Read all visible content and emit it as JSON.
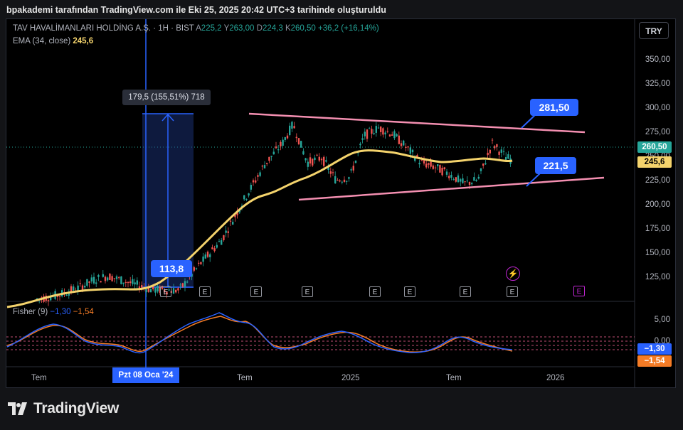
{
  "header": {
    "title": "bpakademi tarafından TradingView.com ile Eki 25, 2025 20:42 UTC+3 tarihinde oluşturuldu"
  },
  "legend": {
    "symbol": "TAV HAVALİMANLARI HOLDİNG A.Ş. · 1H · BIST",
    "a_key": "A",
    "a_val": "225,2",
    "y_key": "Y",
    "y_val": "263,00",
    "d_key": "D",
    "d_val": "224,3",
    "k_key": "K",
    "k_val": "260,50",
    "change": "+36,2 (+16,14%)",
    "ema_label": "EMA (34, close)",
    "ema_val": "245,6"
  },
  "currency": "TRY",
  "y_axis": [
    "350,00",
    "325,00",
    "300,00",
    "275,00",
    "250,00",
    "225,00",
    "200,00",
    "175,00",
    "150,00",
    "125,00"
  ],
  "price_tag": {
    "value": "260,50",
    "color": "#26a69a"
  },
  "ema_tag": {
    "value": "245,6",
    "color": "#f4d36c"
  },
  "fisher": {
    "label": "Fisher (9)",
    "v1": "−1,30",
    "v2": "−1,54",
    "axis": [
      "5,00",
      "0,00"
    ],
    "tag1": "−1,30",
    "tag2": "−1,54",
    "tag1_color": "#2962ff",
    "tag2_color": "#f57c26"
  },
  "x_axis": {
    "labels": [
      "Tem",
      "Tem",
      "2025",
      "Tem",
      "2026"
    ],
    "highlight": "Pzt 08 Oca '24"
  },
  "measure_label": "179,5 (155,51%) 718",
  "callouts": {
    "start": "113,8",
    "top": "281,50",
    "bottom": "221,5"
  },
  "earnings_marker": "E",
  "footer": {
    "brand": "TradingView"
  },
  "chart_data": {
    "type": "line",
    "symbol": "TAV HAVALİMANLARI HOLDİNG A.Ş.",
    "interval": "1H",
    "y_range": [
      110,
      360
    ],
    "series": [
      {
        "name": "EMA (34, close)",
        "color": "#f4d36c",
        "points": [
          [
            0,
            112
          ],
          [
            100,
            115
          ],
          [
            150,
            118
          ],
          [
            200,
            125
          ],
          [
            250,
            145
          ],
          [
            300,
            185
          ],
          [
            350,
            215
          ],
          [
            400,
            232
          ],
          [
            450,
            247
          ],
          [
            480,
            260
          ],
          [
            510,
            263
          ],
          [
            540,
            260
          ],
          [
            580,
            254
          ],
          [
            610,
            246
          ],
          [
            640,
            240
          ],
          [
            680,
            245
          ],
          [
            700,
            248
          ],
          [
            720,
            245
          ]
        ]
      },
      {
        "name": "Close",
        "color": "#26a69a",
        "points": [
          [
            0,
            108
          ],
          [
            30,
            112
          ],
          [
            60,
            120
          ],
          [
            80,
            128
          ],
          [
            100,
            132
          ],
          [
            130,
            125
          ],
          [
            160,
            118
          ],
          [
            200,
            117
          ],
          [
            230,
            145
          ],
          [
            260,
            170
          ],
          [
            290,
            210
          ],
          [
            320,
            248
          ],
          [
            345,
            270
          ],
          [
            360,
            290
          ],
          [
            380,
            250
          ],
          [
            400,
            255
          ],
          [
            420,
            232
          ],
          [
            440,
            235
          ],
          [
            460,
            278
          ],
          [
            480,
            286
          ],
          [
            500,
            280
          ],
          [
            520,
            265
          ],
          [
            540,
            250
          ],
          [
            560,
            245
          ],
          [
            580,
            238
          ],
          [
            600,
            228
          ],
          [
            620,
            232
          ],
          [
            640,
            270
          ],
          [
            660,
            255
          ],
          [
            680,
            250
          ],
          [
            700,
            240
          ],
          [
            716,
            232
          ],
          [
            720,
            260.5
          ]
        ]
      }
    ],
    "trendlines": [
      {
        "name": "upper",
        "color": "#f48fb1",
        "from": [
          350,
          294
        ],
        "to": [
          820,
          275
        ]
      },
      {
        "name": "lower",
        "color": "#f48fb1",
        "from": [
          420,
          205
        ],
        "to": [
          848,
          228
        ]
      }
    ],
    "measure": {
      "from_price": 113.8,
      "to_price": 293.3,
      "change": "179,5 (155,51%) 718"
    },
    "current_price": 260.5,
    "ema_value": 245.6,
    "fisher": {
      "fisher": -1.3,
      "trigger": -1.54
    }
  }
}
